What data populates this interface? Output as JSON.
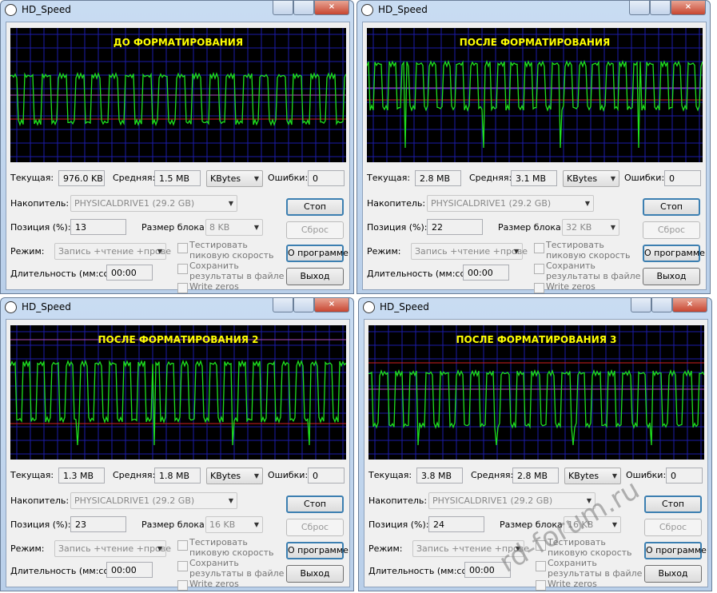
{
  "windows": [
    {
      "title": "HD_Speed",
      "graph_label": "ДО ФОРМАТИРОВАНИЯ",
      "current": "976.0 KB",
      "average": "1.5 MB",
      "unit": "KBytes",
      "errors": "0",
      "drive": "PHYSICALDRIVE1 (29.2 GB)",
      "position": "13",
      "block_size": "8 KB",
      "mode": "Запись +чтение +прове",
      "duration": "00:00",
      "labels": {
        "current": "Текущая:",
        "average": "Средняя:",
        "errors": "Ошибки:",
        "drive": "Накопитель:",
        "position": "Позиция (%):",
        "block_size": "Размер блока:",
        "mode": "Режим:",
        "duration": "Длительность (мм:сс):",
        "peak": "Тестировать пиковую скорость",
        "save": "Сохранить результаты в файле",
        "zeros": "Write zeros",
        "stop": "Стоп",
        "reset": "Сброс",
        "about": "О программе",
        "exit": "Выход"
      }
    },
    {
      "title": "HD_Speed",
      "graph_label": "ПОСЛЕ ФОРМАТИРОВАНИЯ",
      "current": "2.8 MB",
      "average": "3.1 MB",
      "unit": "KBytes",
      "errors": "0",
      "drive": "PHYSICALDRIVE1 (29.2 GB)",
      "position": "22",
      "block_size": "32 KB",
      "mode": "Запись +чтение +прове",
      "duration": "00:00",
      "labels": {
        "current": "Текущая:",
        "average": "Средняя:",
        "errors": "Ошибки:",
        "drive": "Накопитель:",
        "position": "Позиция (%):",
        "block_size": "Размер блока:",
        "mode": "Режим:",
        "duration": "Длительность (мм:сс):",
        "peak": "Тестировать пиковую скорость",
        "save": "Сохранить результаты в файле",
        "zeros": "Write zeros",
        "stop": "Стоп",
        "reset": "Сброс",
        "about": "О программе",
        "exit": "Выход"
      }
    },
    {
      "title": "HD_Speed",
      "graph_label": "ПОСЛЕ ФОРМАТИРОВАНИЯ 2",
      "current": "1.3 MB",
      "average": "1.8 MB",
      "unit": "KBytes",
      "errors": "0",
      "drive": "PHYSICALDRIVE1 (29.2 GB)",
      "position": "23",
      "block_size": "16 KB",
      "mode": "Запись +чтение +прове",
      "duration": "00:00",
      "labels": {
        "current": "Текущая:",
        "average": "Средняя:",
        "errors": "Ошибки:",
        "drive": "Накопитель:",
        "position": "Позиция (%):",
        "block_size": "Размер блока:",
        "mode": "Режим:",
        "duration": "Длительность (мм:сс):",
        "peak": "Тестировать пиковую скорость",
        "save": "Сохранить результаты в файле",
        "zeros": "Write zeros",
        "stop": "Стоп",
        "reset": "Сброс",
        "about": "О программе",
        "exit": "Выход"
      }
    },
    {
      "title": "HD_Speed",
      "graph_label": "ПОСЛЕ ФОРМАТИРОВАНИЯ 3",
      "current": "3.8 MB",
      "average": "2.8 MB",
      "unit": "KBytes",
      "errors": "0",
      "drive": "PHYSICALDRIVE1 (29.2 GB)",
      "position": "24",
      "block_size": "16 KB",
      "mode": "Запись +чтение +прове",
      "duration": "00:00",
      "labels": {
        "current": "Текущая:",
        "average": "Средняя:",
        "errors": "Ошибки:",
        "drive": "Накопитель:",
        "position": "Позиция (%):",
        "block_size": "Размер блока:",
        "mode": "Режим:",
        "duration": "Длительность (мм:сс):",
        "peak": "Тестировать пиковую скорость",
        "save": "Сохранить результаты в файле",
        "zeros": "Write zeros",
        "stop": "Стоп",
        "reset": "Сброс",
        "about": "О программе",
        "exit": "Выход"
      }
    }
  ],
  "watermark": "rd-forum.ru"
}
